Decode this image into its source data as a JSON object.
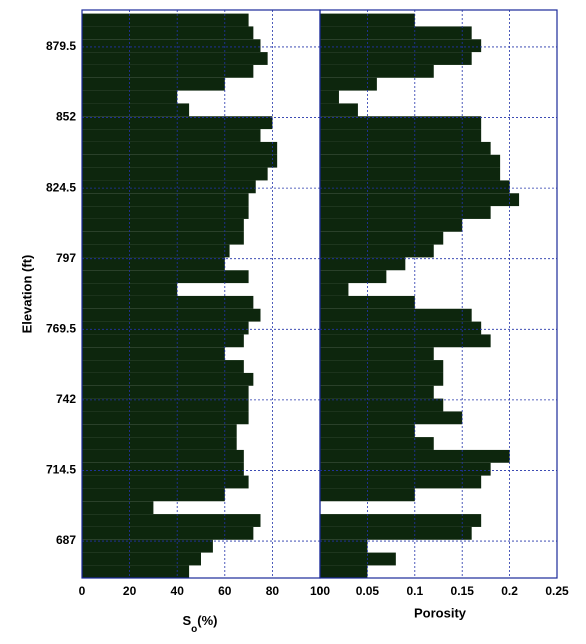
{
  "chart_data": [
    {
      "type": "barh",
      "xlabel": {
        "main": "S",
        "sub": "o",
        "unit": "(%)"
      },
      "ylabel": "Elevation (ft)",
      "color": "#0d260d",
      "y": [
        890,
        885,
        880,
        875,
        870,
        865,
        860,
        855,
        850,
        845,
        840,
        835,
        830,
        825,
        820,
        815,
        810,
        805,
        800,
        795,
        790,
        785,
        780,
        775,
        770,
        765,
        760,
        755,
        750,
        745,
        740,
        735,
        730,
        725,
        720,
        715,
        710,
        705,
        700,
        695,
        690,
        685,
        680,
        675
      ],
      "values": [
        70,
        72,
        75,
        78,
        72,
        60,
        40,
        45,
        80,
        75,
        82,
        82,
        78,
        73,
        70,
        70,
        68,
        68,
        62,
        60,
        70,
        40,
        72,
        75,
        70,
        68,
        60,
        68,
        72,
        70,
        70,
        70,
        65,
        65,
        68,
        68,
        70,
        60,
        30,
        75,
        72,
        55,
        50,
        45
      ],
      "xlim": [
        0,
        100
      ],
      "xticks": [
        0,
        20,
        40,
        60,
        80,
        100
      ],
      "ylim": [
        672.6,
        893.9
      ],
      "yticks": [
        687,
        714.5,
        742,
        769.5,
        797,
        824.5,
        852,
        879.5
      ],
      "grid": true
    },
    {
      "type": "barh",
      "xlabel": "Porosity",
      "color": "#0d260d",
      "y": [
        890,
        885,
        880,
        875,
        870,
        865,
        860,
        855,
        850,
        845,
        840,
        835,
        830,
        825,
        820,
        815,
        810,
        805,
        800,
        795,
        790,
        785,
        780,
        775,
        770,
        765,
        760,
        755,
        750,
        745,
        740,
        735,
        730,
        725,
        720,
        715,
        710,
        705,
        700,
        695,
        690,
        685,
        680,
        675
      ],
      "values": [
        0.1,
        0.16,
        0.17,
        0.16,
        0.12,
        0.06,
        0.02,
        0.04,
        0.17,
        0.17,
        0.18,
        0.19,
        0.19,
        0.2,
        0.21,
        0.18,
        0.15,
        0.13,
        0.12,
        0.09,
        0.07,
        0.03,
        0.1,
        0.16,
        0.17,
        0.18,
        0.12,
        0.13,
        0.13,
        0.12,
        0.13,
        0.15,
        0.1,
        0.12,
        0.2,
        0.18,
        0.17,
        0.1,
        0,
        0.17,
        0.16,
        0.05,
        0.08,
        0.05
      ],
      "xlim": [
        0,
        0.25
      ],
      "xticks": [
        0,
        0.05,
        0.1,
        0.15,
        0.2,
        0.25
      ],
      "ylim": [
        672.6,
        893.9
      ],
      "grid": true
    }
  ]
}
